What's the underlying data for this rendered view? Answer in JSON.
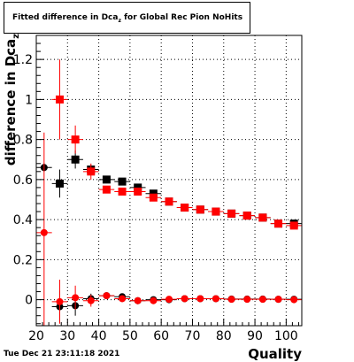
{
  "title": {
    "main": "Fitted difference in Dca",
    "subscript": "z",
    "suffix": " for Global Rec Pion NoHits"
  },
  "timestamp": "Tue Dec 21 23:11:18 2021",
  "chart_data": {
    "type": "scatter",
    "title": "Fitted difference in Dca_z for Global Rec Pion NoHits",
    "xlabel": "Quality",
    "ylabel": "difference in Dca_z",
    "xlim": [
      20,
      105
    ],
    "ylim": [
      -0.13,
      1.32
    ],
    "xticks": [
      20,
      30,
      40,
      50,
      60,
      70,
      80,
      90,
      100
    ],
    "yticks": [
      0,
      0.2,
      0.4,
      0.6,
      0.8,
      1,
      1.2
    ],
    "ytick_labels": [
      "0",
      "0.2",
      "0.4",
      "0.6",
      "0.8",
      "1",
      "1.2"
    ],
    "grid": true,
    "series": [
      {
        "color": "#000000",
        "marker": "square",
        "points": [
          {
            "x": 27.5,
            "y": 0.58,
            "ey": 0.07
          },
          {
            "x": 32.5,
            "y": 0.7,
            "ey": 0.045
          },
          {
            "x": 37.5,
            "y": 0.65,
            "ey": 0.025
          },
          {
            "x": 42.5,
            "y": 0.6,
            "ey": 0.012
          },
          {
            "x": 47.5,
            "y": 0.59,
            "ey": 0.01
          },
          {
            "x": 52.5,
            "y": 0.56,
            "ey": 0.01
          },
          {
            "x": 57.5,
            "y": 0.53,
            "ey": 0.01
          },
          {
            "x": 62.5,
            "y": 0.49,
            "ey": 0.008
          },
          {
            "x": 67.5,
            "y": 0.46,
            "ey": 0.008
          },
          {
            "x": 72.5,
            "y": 0.45,
            "ey": 0.008
          },
          {
            "x": 77.5,
            "y": 0.44,
            "ey": 0.008
          },
          {
            "x": 82.5,
            "y": 0.43,
            "ey": 0.008
          },
          {
            "x": 87.5,
            "y": 0.42,
            "ey": 0.008
          },
          {
            "x": 92.5,
            "y": 0.41,
            "ey": 0.008
          },
          {
            "x": 97.5,
            "y": 0.38,
            "ey": 0.008
          },
          {
            "x": 102.5,
            "y": 0.38,
            "ey": 0.008
          }
        ]
      },
      {
        "color": "#ff0000",
        "marker": "square",
        "points": [
          {
            "x": 27.5,
            "y": 1.0,
            "ey": 0.2
          },
          {
            "x": 32.5,
            "y": 0.8,
            "ey": 0.07
          },
          {
            "x": 37.5,
            "y": 0.64,
            "ey": 0.04
          },
          {
            "x": 42.5,
            "y": 0.55,
            "ey": 0.015
          },
          {
            "x": 47.5,
            "y": 0.54,
            "ey": 0.012
          },
          {
            "x": 52.5,
            "y": 0.54,
            "ey": 0.012
          },
          {
            "x": 57.5,
            "y": 0.51,
            "ey": 0.01
          },
          {
            "x": 62.5,
            "y": 0.49,
            "ey": 0.008
          },
          {
            "x": 67.5,
            "y": 0.46,
            "ey": 0.008
          },
          {
            "x": 72.5,
            "y": 0.45,
            "ey": 0.008
          },
          {
            "x": 77.5,
            "y": 0.44,
            "ey": 0.008
          },
          {
            "x": 82.5,
            "y": 0.43,
            "ey": 0.008
          },
          {
            "x": 87.5,
            "y": 0.42,
            "ey": 0.008
          },
          {
            "x": 92.5,
            "y": 0.41,
            "ey": 0.008
          },
          {
            "x": 97.5,
            "y": 0.38,
            "ey": 0.008
          },
          {
            "x": 102.5,
            "y": 0.37,
            "ey": 0.008
          }
        ]
      },
      {
        "color": "#000000",
        "marker": "circle",
        "points": [
          {
            "x": 22.5,
            "y": 0.66,
            "ey": 0.02
          },
          {
            "x": 27.5,
            "y": -0.035,
            "ey": 0.08
          },
          {
            "x": 32.5,
            "y": -0.03,
            "ey": 0.05
          },
          {
            "x": 37.5,
            "y": 0.005,
            "ey": 0.025
          },
          {
            "x": 42.5,
            "y": 0.02,
            "ey": 0.012
          },
          {
            "x": 47.5,
            "y": 0.015,
            "ey": 0.01
          },
          {
            "x": 52.5,
            "y": -0.005,
            "ey": 0.01
          },
          {
            "x": 57.5,
            "y": 0.0,
            "ey": 0.01
          },
          {
            "x": 62.5,
            "y": 0.0,
            "ey": 0.008
          },
          {
            "x": 67.5,
            "y": 0.005,
            "ey": 0.008
          },
          {
            "x": 72.5,
            "y": 0.005,
            "ey": 0.008
          },
          {
            "x": 77.5,
            "y": 0.005,
            "ey": 0.008
          },
          {
            "x": 82.5,
            "y": 0.003,
            "ey": 0.008
          },
          {
            "x": 87.5,
            "y": 0.003,
            "ey": 0.008
          },
          {
            "x": 92.5,
            "y": 0.003,
            "ey": 0.008
          },
          {
            "x": 97.5,
            "y": 0.002,
            "ey": 0.008
          },
          {
            "x": 102.5,
            "y": 0.002,
            "ey": 0.008
          }
        ]
      },
      {
        "color": "#ff0000",
        "marker": "circle",
        "points": [
          {
            "x": 22.5,
            "y": 0.335,
            "ey": 0.5
          },
          {
            "x": 27.5,
            "y": -0.01,
            "ey": 0.11
          },
          {
            "x": 32.5,
            "y": 0.01,
            "ey": 0.06
          },
          {
            "x": 37.5,
            "y": -0.005,
            "ey": 0.03
          },
          {
            "x": 42.5,
            "y": 0.02,
            "ey": 0.015
          },
          {
            "x": 47.5,
            "y": 0.005,
            "ey": 0.012
          },
          {
            "x": 52.5,
            "y": -0.005,
            "ey": 0.01
          },
          {
            "x": 57.5,
            "y": -0.005,
            "ey": 0.01
          },
          {
            "x": 62.5,
            "y": 0.002,
            "ey": 0.008
          },
          {
            "x": 67.5,
            "y": 0.005,
            "ey": 0.008
          },
          {
            "x": 72.5,
            "y": 0.005,
            "ey": 0.008
          },
          {
            "x": 77.5,
            "y": 0.005,
            "ey": 0.008
          },
          {
            "x": 82.5,
            "y": 0.002,
            "ey": 0.008
          },
          {
            "x": 87.5,
            "y": 0.002,
            "ey": 0.008
          },
          {
            "x": 92.5,
            "y": 0.002,
            "ey": 0.008
          },
          {
            "x": 97.5,
            "y": 0.002,
            "ey": 0.008
          },
          {
            "x": 102.5,
            "y": 0.0,
            "ey": 0.008
          }
        ]
      }
    ]
  }
}
